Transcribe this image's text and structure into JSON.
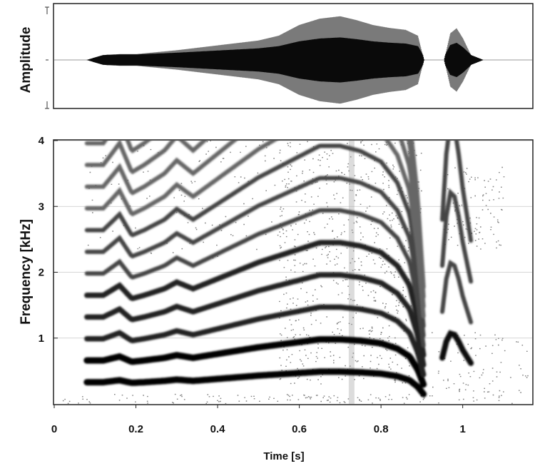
{
  "chart_data": [
    {
      "type": "line",
      "panel": "waveform",
      "ylabel": "Amplitude",
      "xlim": [
        0,
        1.17
      ],
      "ylim": [
        -1,
        1
      ],
      "series": [
        {
          "x": [
            0.08,
            0.12,
            0.16,
            0.2,
            0.3,
            0.4,
            0.5,
            0.55,
            0.6,
            0.65,
            0.7,
            0.74,
            0.78,
            0.82,
            0.86,
            0.89,
            0.905
          ],
          "env": [
            0.0,
            0.1,
            0.12,
            0.12,
            0.2,
            0.3,
            0.4,
            0.5,
            0.72,
            0.85,
            0.9,
            0.82,
            0.72,
            0.66,
            0.62,
            0.5,
            0.0
          ]
        },
        {
          "x": [
            0.955,
            0.97,
            0.985,
            1.0,
            1.02,
            1.05
          ],
          "env": [
            0.0,
            0.55,
            0.65,
            0.45,
            0.1,
            0.0
          ]
        }
      ]
    },
    {
      "type": "heatmap",
      "panel": "spectrogram",
      "xlabel": "Time [s]",
      "ylabel": "Frequency [kHz]",
      "xlim": [
        0,
        1.17
      ],
      "ylim": [
        0,
        4
      ],
      "xticks": [
        0,
        0.2,
        0.4,
        0.6,
        0.8,
        1
      ],
      "xtick_labels": [
        "0",
        "0.2",
        "0.4",
        "0.6",
        "0.8",
        "1"
      ],
      "yticks": [
        1,
        2,
        3,
        4
      ],
      "ytick_labels": [
        "1",
        "2",
        "3",
        "4"
      ],
      "grid": true,
      "colormap": "greyscale",
      "f0_contour": {
        "t": [
          0.08,
          0.12,
          0.16,
          0.19,
          0.22,
          0.27,
          0.3,
          0.34,
          0.4,
          0.5,
          0.6,
          0.65,
          0.7,
          0.75,
          0.8,
          0.84,
          0.87,
          0.89,
          0.905
        ],
        "khz": [
          0.33,
          0.33,
          0.36,
          0.32,
          0.33,
          0.35,
          0.37,
          0.35,
          0.38,
          0.43,
          0.47,
          0.49,
          0.49,
          0.48,
          0.46,
          0.42,
          0.36,
          0.26,
          0.14
        ]
      },
      "second_syllable_f0": {
        "t": [
          0.95,
          0.96,
          0.97,
          0.98,
          0.99,
          1.0,
          1.02
        ],
        "khz": [
          0.7,
          0.95,
          1.07,
          1.05,
          0.95,
          0.82,
          0.62
        ]
      },
      "harmonics_first_syllable": 12,
      "harmonics_second_syllable": 4
    }
  ]
}
